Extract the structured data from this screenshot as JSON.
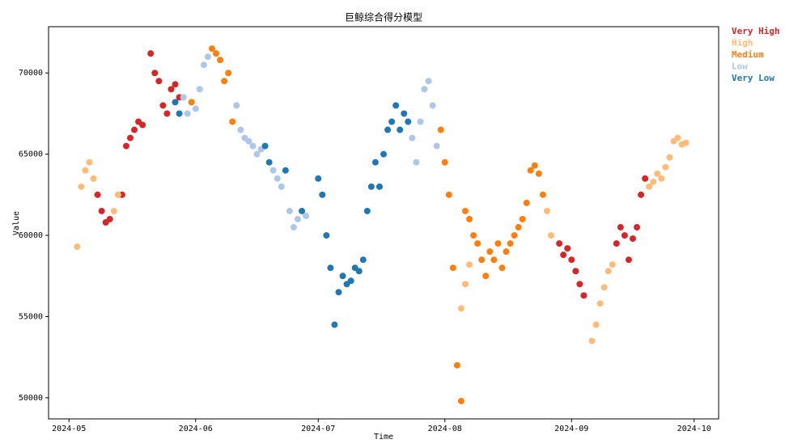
{
  "chart_data": {
    "type": "scatter",
    "title": "巨鲸综合得分模型",
    "x_label": "Time",
    "y_label": "Value",
    "xlim": [
      "2024-04-26",
      "2024-10-07"
    ],
    "ylim": [
      48700,
      72850
    ],
    "xticks": [
      {
        "value": "2024-05-01",
        "label": "2024-05"
      },
      {
        "value": "2024-06-01",
        "label": "2024-06"
      },
      {
        "value": "2024-07-01",
        "label": "2024-07"
      },
      {
        "value": "2024-08-01",
        "label": "2024-08"
      },
      {
        "value": "2024-09-01",
        "label": "2024-09"
      },
      {
        "value": "2024-10-01",
        "label": "2024-10"
      }
    ],
    "yticks": [
      50000,
      55000,
      60000,
      65000,
      70000
    ],
    "grid": false,
    "legend": "outside-right",
    "series": [
      {
        "name": "Very High",
        "color": "#d62728",
        "x": [
          "2024-05-08",
          "2024-05-09",
          "2024-05-10",
          "2024-05-11",
          "2024-05-14",
          "2024-05-15",
          "2024-05-16",
          "2024-05-17",
          "2024-05-18",
          "2024-05-19",
          "2024-05-21",
          "2024-05-22",
          "2024-05-23",
          "2024-05-24",
          "2024-05-25",
          "2024-05-26",
          "2024-05-27",
          "2024-05-28",
          "2024-08-29",
          "2024-08-30",
          "2024-08-31",
          "2024-09-01",
          "2024-09-02",
          "2024-09-03",
          "2024-09-04",
          "2024-09-12",
          "2024-09-13",
          "2024-09-14",
          "2024-09-15",
          "2024-09-16",
          "2024-09-17",
          "2024-09-18",
          "2024-09-19"
        ],
        "values": [
          62500,
          61500,
          60800,
          61000,
          62500,
          65500,
          66000,
          66500,
          67000,
          66800,
          71200,
          70000,
          69500,
          68000,
          67500,
          69000,
          69300,
          68500,
          59500,
          58800,
          59200,
          58500,
          57800,
          57000,
          56300,
          59500,
          60500,
          60000,
          58500,
          59800,
          60500,
          62500,
          63500
        ]
      },
      {
        "name": "High",
        "color": "#ffbb78",
        "x": [
          "2024-05-03",
          "2024-05-04",
          "2024-05-05",
          "2024-05-06",
          "2024-05-07",
          "2024-05-12",
          "2024-05-13",
          "2024-08-05",
          "2024-08-06",
          "2024-08-07",
          "2024-08-26",
          "2024-08-27",
          "2024-09-06",
          "2024-09-07",
          "2024-09-08",
          "2024-09-09",
          "2024-09-10",
          "2024-09-11",
          "2024-09-20",
          "2024-09-21",
          "2024-09-22",
          "2024-09-23",
          "2024-09-24",
          "2024-09-25",
          "2024-09-26",
          "2024-09-27",
          "2024-09-28",
          "2024-09-29"
        ],
        "values": [
          59300,
          63000,
          64000,
          64500,
          63500,
          61500,
          62500,
          55500,
          57000,
          58200,
          61500,
          60000,
          53500,
          54500,
          55800,
          56800,
          57800,
          58200,
          63000,
          63300,
          63800,
          63500,
          64200,
          64800,
          65800,
          66000,
          65600,
          65700
        ]
      },
      {
        "name": "Medium",
        "color": "#ff7f0e",
        "x": [
          "2024-05-31",
          "2024-06-05",
          "2024-06-06",
          "2024-06-07",
          "2024-06-08",
          "2024-06-09",
          "2024-06-10",
          "2024-07-31",
          "2024-08-01",
          "2024-08-02",
          "2024-08-03",
          "2024-08-04",
          "2024-08-05",
          "2024-08-06",
          "2024-08-07",
          "2024-08-08",
          "2024-08-09",
          "2024-08-10",
          "2024-08-11",
          "2024-08-12",
          "2024-08-13",
          "2024-08-14",
          "2024-08-15",
          "2024-08-16",
          "2024-08-17",
          "2024-08-18",
          "2024-08-19",
          "2024-08-20",
          "2024-08-21",
          "2024-08-22",
          "2024-08-23",
          "2024-08-24",
          "2024-08-25"
        ],
        "values": [
          68200,
          71500,
          71200,
          70800,
          69500,
          70000,
          67000,
          66500,
          64500,
          62500,
          58000,
          52000,
          49800,
          61500,
          61000,
          60000,
          59500,
          58500,
          57500,
          59000,
          58500,
          59500,
          58000,
          59000,
          59500,
          60000,
          60500,
          61000,
          62000,
          64000,
          64300,
          63800,
          62500
        ]
      },
      {
        "name": "Low",
        "color": "#aec7e8",
        "x": [
          "2024-05-29",
          "2024-05-30",
          "2024-06-01",
          "2024-06-02",
          "2024-06-03",
          "2024-06-04",
          "2024-06-11",
          "2024-06-12",
          "2024-06-13",
          "2024-06-14",
          "2024-06-15",
          "2024-06-16",
          "2024-06-17",
          "2024-06-20",
          "2024-06-21",
          "2024-06-22",
          "2024-06-24",
          "2024-06-25",
          "2024-06-26",
          "2024-06-28",
          "2024-07-24",
          "2024-07-25",
          "2024-07-26",
          "2024-07-27",
          "2024-07-28",
          "2024-07-29",
          "2024-07-30"
        ],
        "values": [
          68500,
          67500,
          67800,
          69000,
          70500,
          71000,
          68000,
          66500,
          66000,
          65800,
          65500,
          65000,
          65300,
          64000,
          63500,
          63000,
          61500,
          60500,
          61000,
          61200,
          66000,
          64500,
          67000,
          69000,
          69500,
          68000,
          65500
        ]
      },
      {
        "name": "Very Low",
        "color": "#1f77b4",
        "x": [
          "2024-05-27",
          "2024-05-28",
          "2024-06-18",
          "2024-06-19",
          "2024-06-23",
          "2024-06-27",
          "2024-07-01",
          "2024-07-02",
          "2024-07-03",
          "2024-07-04",
          "2024-07-05",
          "2024-07-06",
          "2024-07-07",
          "2024-07-08",
          "2024-07-09",
          "2024-07-10",
          "2024-07-11",
          "2024-07-12",
          "2024-07-13",
          "2024-07-14",
          "2024-07-15",
          "2024-07-16",
          "2024-07-17",
          "2024-07-18",
          "2024-07-19",
          "2024-07-20",
          "2024-07-21",
          "2024-07-22",
          "2024-07-23"
        ],
        "values": [
          68200,
          67500,
          65500,
          64500,
          64000,
          61500,
          63500,
          62500,
          60000,
          58000,
          54500,
          56500,
          57500,
          57000,
          57200,
          58000,
          57800,
          58500,
          61500,
          63000,
          64500,
          63000,
          65000,
          66500,
          67000,
          68000,
          66500,
          67500,
          67000
        ]
      }
    ]
  }
}
